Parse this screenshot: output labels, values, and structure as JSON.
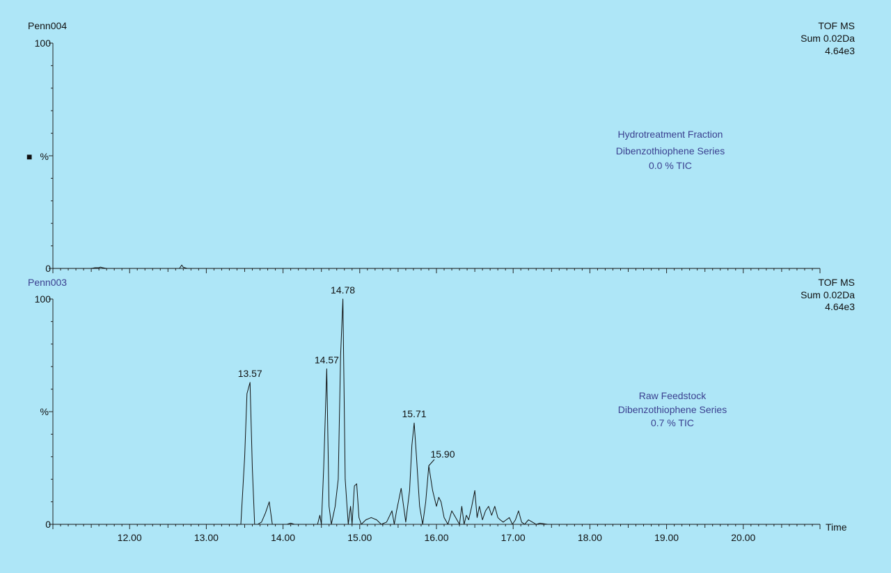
{
  "chart_data": [
    {
      "type": "line",
      "sample": "Penn004",
      "instrument": [
        "TOF MS",
        "Sum 0.02Da",
        "4.64e3"
      ],
      "annotation": [
        "Hydrotreatment Fraction",
        "Dibenzothiophene Series",
        "0.0 % TIC"
      ],
      "y_ticks": [
        "100",
        "%",
        "0"
      ],
      "y_marker": "■",
      "ylim": [
        0,
        100
      ],
      "xlim": [
        11.0,
        21.0
      ],
      "peak_labels": [],
      "x": [
        11.0,
        11.5,
        11.55,
        11.6,
        11.62,
        11.65,
        11.7,
        12.0,
        12.65,
        12.68,
        12.7,
        12.75,
        13.0,
        21.0
      ],
      "y": [
        0,
        0,
        0.3,
        0.3,
        0.6,
        0.3,
        0,
        0,
        0,
        1.5,
        0.5,
        0,
        0,
        0
      ]
    },
    {
      "type": "line",
      "sample": "Penn003",
      "instrument": [
        "TOF MS",
        "Sum 0.02Da",
        "4.64e3"
      ],
      "annotation": [
        "Raw Feedstock",
        "Dibenzothiophene Series",
        "0.7 % TIC"
      ],
      "y_ticks": [
        "100",
        "%",
        "0"
      ],
      "xlabel": "Time",
      "x_ticks": [
        "12.00",
        "13.00",
        "14.00",
        "15.00",
        "16.00",
        "17.00",
        "18.00",
        "19.00",
        "20.00"
      ],
      "x_tick_values": [
        12,
        13,
        14,
        15,
        16,
        17,
        18,
        19,
        20
      ],
      "ylim": [
        0,
        100
      ],
      "xlim": [
        11.0,
        21.0
      ],
      "peak_labels": [
        {
          "x": 13.57,
          "y": 63,
          "text": "13.57"
        },
        {
          "x": 14.57,
          "y": 69,
          "text": "14.57"
        },
        {
          "x": 14.78,
          "y": 100,
          "text": "14.78"
        },
        {
          "x": 15.71,
          "y": 45,
          "text": "15.71"
        },
        {
          "x": 15.9,
          "y": 26,
          "text": "15.90"
        }
      ],
      "x": [
        11.0,
        13.45,
        13.5,
        13.53,
        13.57,
        13.6,
        13.63,
        13.67,
        13.72,
        13.77,
        13.82,
        13.86,
        13.9,
        14.05,
        14.1,
        14.15,
        14.45,
        14.48,
        14.5,
        14.53,
        14.57,
        14.6,
        14.63,
        14.68,
        14.72,
        14.75,
        14.78,
        14.81,
        14.85,
        14.88,
        14.9,
        14.93,
        14.96,
        14.99,
        15.02,
        15.08,
        15.15,
        15.22,
        15.28,
        15.35,
        15.42,
        15.45,
        15.48,
        15.54,
        15.6,
        15.65,
        15.68,
        15.71,
        15.74,
        15.78,
        15.82,
        15.86,
        15.9,
        15.95,
        16.0,
        16.03,
        16.06,
        16.1,
        16.15,
        16.2,
        16.25,
        16.3,
        16.33,
        16.36,
        16.39,
        16.42,
        16.46,
        16.5,
        16.53,
        16.56,
        16.6,
        16.64,
        16.68,
        16.72,
        16.76,
        16.8,
        16.83,
        16.87,
        16.91,
        16.95,
        16.99,
        17.03,
        17.07,
        17.11,
        17.15,
        17.2,
        17.25,
        17.3,
        17.35,
        17.45,
        17.5,
        21.0
      ],
      "y": [
        0,
        0,
        30,
        58,
        63,
        25,
        0,
        0,
        1,
        5,
        10,
        0,
        0,
        0,
        0.5,
        0,
        0,
        4,
        0,
        25,
        69,
        8,
        0,
        8,
        20,
        75,
        100,
        20,
        0,
        8,
        0,
        17,
        18,
        3,
        0,
        2,
        3,
        2,
        0,
        1,
        6,
        0,
        6,
        16,
        1,
        15,
        35,
        45,
        30,
        8,
        0,
        10,
        26,
        15,
        8,
        12,
        10,
        3,
        0,
        6,
        3,
        0,
        8,
        0,
        4,
        2,
        8,
        15,
        3,
        8,
        2,
        6,
        8,
        4,
        8,
        3,
        2,
        1,
        2,
        3,
        0,
        2,
        6,
        1,
        0,
        2,
        1,
        0,
        0.5,
        0,
        0,
        0
      ]
    }
  ]
}
